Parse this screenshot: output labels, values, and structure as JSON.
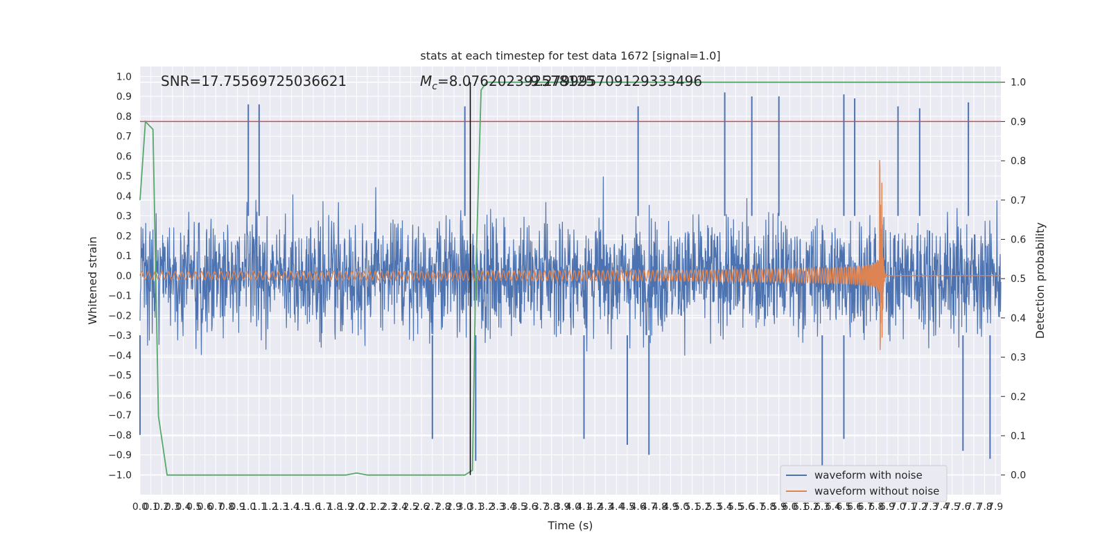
{
  "chart_data": {
    "type": "line",
    "title": "stats at each timestep for test data 1672 [signal=1.0]",
    "xlabel": "Time (s)",
    "ylabel": "Whitened strain",
    "y2label": "Detection probability",
    "xlim": [
      0.0,
      7.95
    ],
    "ylim": [
      -1.1,
      1.05
    ],
    "y2lim": [
      -0.05,
      1.04
    ],
    "x_tick_step": 0.1,
    "x_ticks": [
      "0.0",
      "0.1",
      "0.2",
      "0.3",
      "0.4",
      "0.5",
      "0.6",
      "0.7",
      "0.8",
      "0.9",
      "1.0",
      "1.1",
      "1.2",
      "1.3",
      "1.4",
      "1.5",
      "1.6",
      "1.7",
      "1.8",
      "1.9",
      "2.0",
      "2.1",
      "2.2",
      "2.3",
      "2.4",
      "2.5",
      "2.6",
      "2.7",
      "2.8",
      "2.9",
      "3.0",
      "3.1",
      "3.2",
      "3.3",
      "3.4",
      "3.5",
      "3.6",
      "3.7",
      "3.8",
      "3.9",
      "4.0",
      "4.1",
      "4.2",
      "4.3",
      "4.4",
      "4.5",
      "4.6",
      "4.7",
      "4.8",
      "4.9",
      "5.0",
      "5.1",
      "5.2",
      "5.3",
      "5.4",
      "5.5",
      "5.6",
      "5.7",
      "5.8",
      "5.9",
      "6.0",
      "6.1",
      "6.2",
      "6.3",
      "6.4",
      "6.5",
      "6.6",
      "6.7",
      "6.8",
      "6.9",
      "7.0",
      "7.1",
      "7.2",
      "7.3",
      "7.4",
      "7.5",
      "7.6",
      "7.7",
      "7.8",
      "7.9"
    ],
    "y_ticks": [
      "1.0",
      "0.9",
      "0.8",
      "0.7",
      "0.6",
      "0.5",
      "0.4",
      "0.3",
      "0.2",
      "0.1",
      "0.0",
      "−0.1",
      "−0.2",
      "−0.3",
      "−0.4",
      "−0.5",
      "−0.6",
      "−0.7",
      "−0.8",
      "−0.9",
      "−1.0"
    ],
    "y_tick_values": [
      1.0,
      0.9,
      0.8,
      0.7,
      0.6,
      0.5,
      0.4,
      0.3,
      0.2,
      0.1,
      0.0,
      -0.1,
      -0.2,
      -0.3,
      -0.4,
      -0.5,
      -0.6,
      -0.7,
      -0.8,
      -0.9,
      -1.0
    ],
    "y2_ticks": [
      "1.0",
      "0.9",
      "0.8",
      "0.7",
      "0.6",
      "0.5",
      "0.4",
      "0.3",
      "0.2",
      "0.1",
      "0.0"
    ],
    "y2_tick_values": [
      1.0,
      0.9,
      0.8,
      0.7,
      0.6,
      0.5,
      0.4,
      0.3,
      0.2,
      0.1,
      0.0
    ],
    "grid": true,
    "legend_position": "lower-right",
    "annotations": {
      "snr": "SNR=17.75569725036621",
      "mc_symbol": "M",
      "mc_sub": "c",
      "mc_value": "=8.076202392578125",
      "mc_overlap": "9.279995709129333496"
    },
    "series": [
      {
        "name": "waveform with noise",
        "color": "#4c72b0",
        "description_points_x": [
          0.0,
          7.95
        ],
        "envelope_typical": 0.5,
        "peaks_x": [
          1.0,
          1.1,
          3.0,
          4.6,
          5.4,
          5.65,
          5.9,
          6.5,
          6.6,
          7.0,
          7.2,
          7.65
        ],
        "peaks_y": [
          0.86,
          0.86,
          0.85,
          0.85,
          0.92,
          0.9,
          0.9,
          0.91,
          0.89,
          0.85,
          0.84,
          0.87
        ],
        "troughs_x": [
          0.0,
          2.7,
          3.1,
          4.1,
          4.5,
          4.7,
          6.3,
          6.5,
          7.6,
          7.85
        ],
        "troughs_y": [
          -0.8,
          -0.82,
          -0.93,
          -0.82,
          -0.85,
          -0.9,
          -1.0,
          -0.82,
          -0.88,
          -0.92
        ]
      },
      {
        "name": "waveform without noise",
        "color": "#dd8452",
        "chirp_start_x": 0.0,
        "chirp_merger_x": 6.85,
        "amplitude_start": 0.02,
        "peak_max": 0.6,
        "peak_min": -0.47,
        "start_freq_cycles_per_s": 16,
        "end_freq_cycles_per_s": 140
      },
      {
        "name": "",
        "axis": "right",
        "color": "#55a868",
        "x": [
          0.0,
          0.05,
          0.12,
          0.17,
          0.25,
          1.9,
          2.0,
          2.1,
          3.0,
          3.07,
          3.1,
          3.15,
          3.2,
          3.3,
          4.0,
          5.0,
          6.0,
          7.0,
          7.95
        ],
        "y": [
          0.7,
          0.9,
          0.88,
          0.15,
          0.0,
          0.0,
          0.005,
          0.0,
          0.0,
          0.012,
          0.5,
          0.98,
          1.0,
          1.0,
          1.0,
          1.0,
          1.0,
          1.0,
          1.0
        ]
      }
    ],
    "threshold_line": {
      "y": 0.9,
      "axis": "right",
      "color": "#c44e52"
    },
    "vertical_line": {
      "x": 3.05,
      "color": "#000000"
    }
  }
}
